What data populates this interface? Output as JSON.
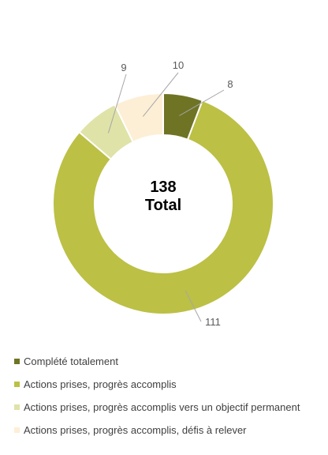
{
  "chart_data": {
    "type": "donut",
    "center": {
      "value": "138",
      "label": "Total"
    },
    "series": [
      {
        "name": "Complété totalement",
        "value": 8,
        "color": "#6f7425"
      },
      {
        "name": "Actions prises, progrès accomplis",
        "value": 111,
        "color": "#bcc045"
      },
      {
        "name": "Actions prises, progrès accomplis vers un objectif permanent",
        "value": 9,
        "color": "#dfe3a8"
      },
      {
        "name": "Actions prises, progrès accomplis, défis à relever",
        "value": 10,
        "color": "#fdefd6"
      }
    ],
    "data_labels": [
      "8",
      "111",
      "9",
      "10"
    ],
    "legend_position": "bottom"
  }
}
